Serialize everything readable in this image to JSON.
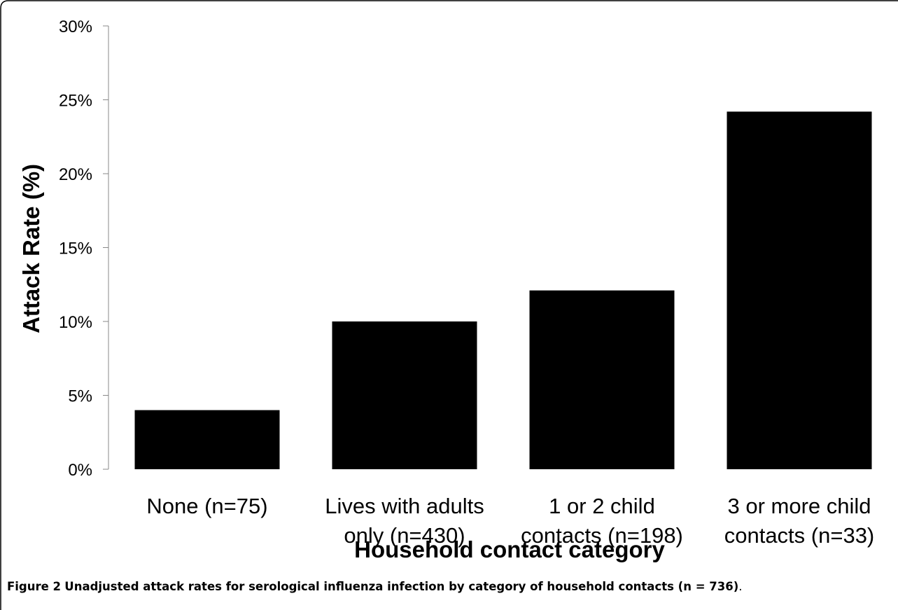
{
  "chart_data": {
    "type": "bar",
    "categories": [
      "None (n=75)",
      "Lives with adults only (n=430)",
      "1 or 2 child contacts (n=198)",
      "3 or more child contacts (n=33)"
    ],
    "category_lines": [
      [
        "None (n=75)"
      ],
      [
        "Lives with adults",
        "only (n=430)"
      ],
      [
        "1 or 2 child",
        "contacts (n=198)"
      ],
      [
        "3 or more child",
        "contacts (n=33)"
      ]
    ],
    "values": [
      4.0,
      10.0,
      12.1,
      24.2
    ],
    "ylim": [
      0,
      30
    ],
    "yticks": [
      "0%",
      "5%",
      "10%",
      "15%",
      "20%",
      "25%",
      "30%"
    ],
    "ylabel": "Attack Rate (%)",
    "xlabel": "Household contact category",
    "bar_color": "#000000",
    "grid": false,
    "legend": "none"
  },
  "caption": {
    "label": "Figure 2",
    "text": "Unadjusted attack rates for serological influenza infection by category of household contacts (n = 736)",
    "end": "."
  }
}
